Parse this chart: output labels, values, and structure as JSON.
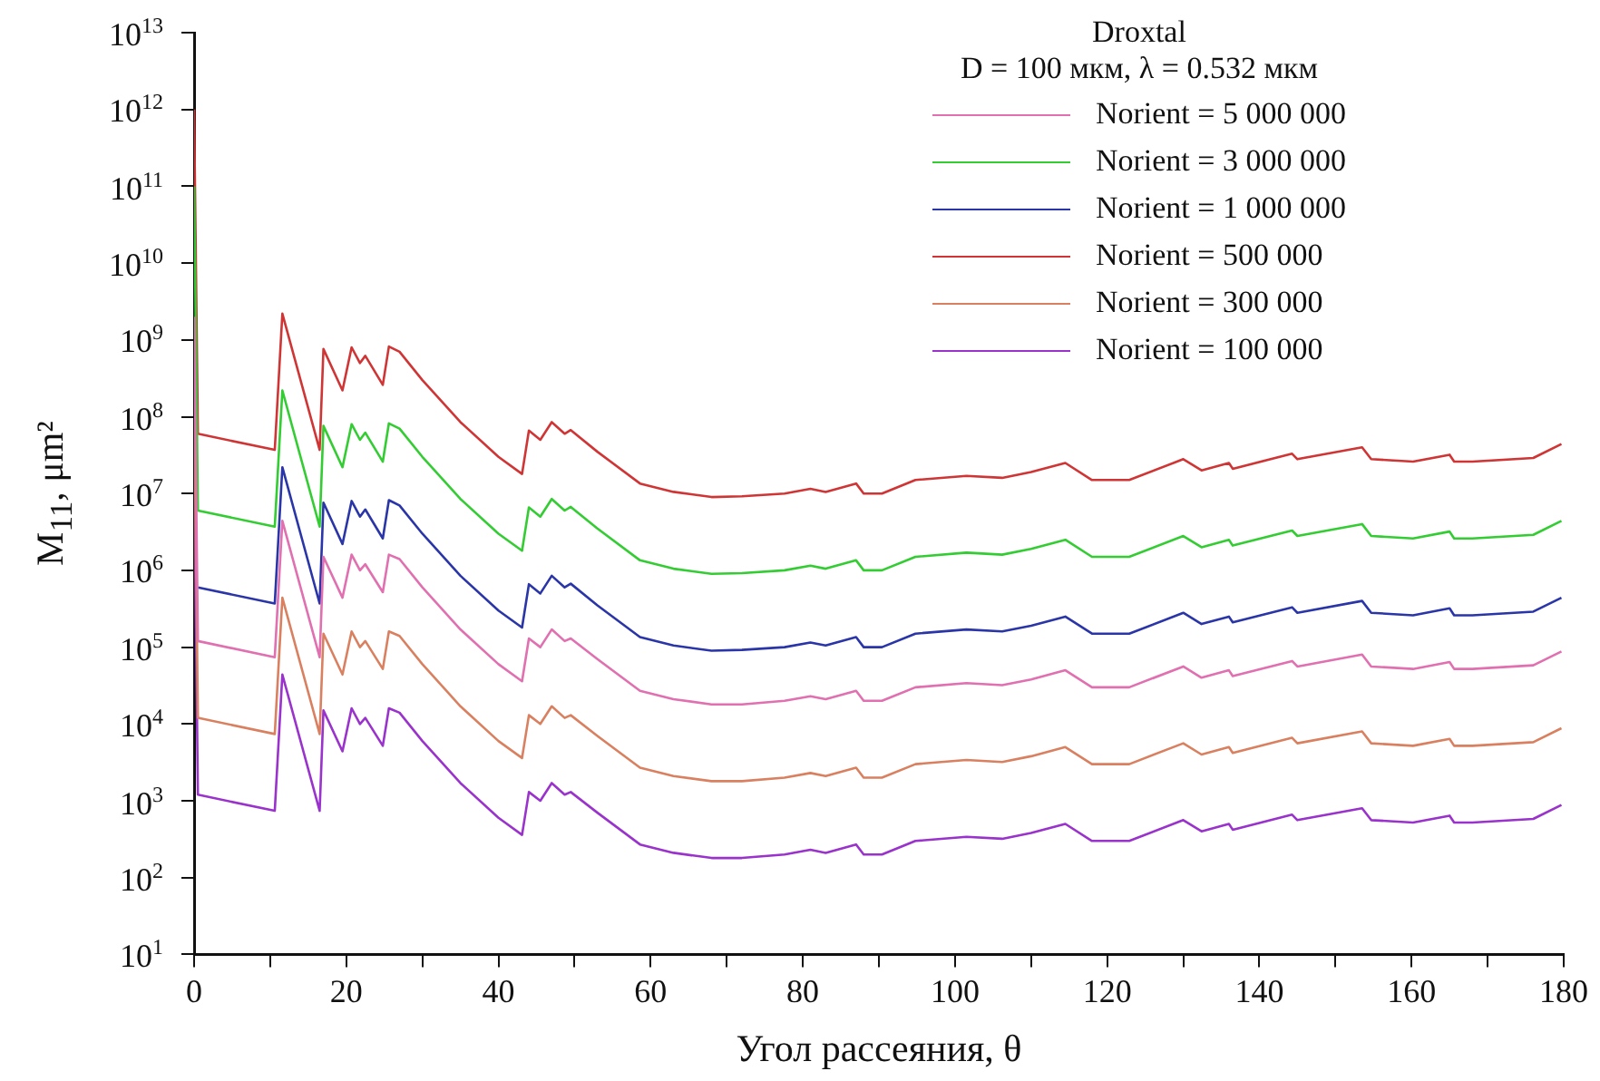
{
  "chart_data": {
    "type": "line",
    "xlabel": "Угол рассеяния, θ",
    "ylabel": "M$_{11}$, μm²",
    "legend_title": "Droxtal",
    "annotations": [
      "D = 100 мкм, λ = 0.532 мкм"
    ],
    "x": [
      0,
      0.5,
      10.6,
      11.6,
      16.5,
      17,
      19.5,
      20.7,
      21.8,
      22.5,
      24.8,
      25.6,
      27,
      30,
      35,
      40,
      43.1,
      44,
      45.5,
      47,
      48.7,
      49.5,
      53,
      58.6,
      63,
      68,
      72,
      77.6,
      81,
      83,
      87,
      88,
      90.4,
      94.8,
      101.5,
      106.2,
      110,
      114.5,
      118,
      122.9,
      130,
      132.4,
      136,
      136.5,
      144.3,
      145,
      153.5,
      154.7,
      160.2,
      165,
      165.6,
      168,
      176,
      179.7
    ],
    "series": [
      {
        "name": "Norient = 5 000 000",
        "color": "#e070b0",
        "values": [
          2000000000.0,
          120000.0,
          74000.0,
          4400000.0,
          74000.0,
          1500000.0,
          440000.0,
          1600000.0,
          1000000.0,
          1200000.0,
          520000.0,
          1600000.0,
          1400000.0,
          600000.0,
          170000.0,
          60000.0,
          36000.0,
          130000.0,
          100000.0,
          170000.0,
          120000.0,
          130000.0,
          70000.0,
          27000.0,
          21000.0,
          18000.0,
          18000.0,
          20000.0,
          23000.0,
          21000.0,
          27000.0,
          20000.0,
          20000.0,
          30000.0,
          34000.0,
          32000.0,
          38000.0,
          50000.0,
          30000.0,
          30000.0,
          56000.0,
          40000.0,
          50000.0,
          42000.0,
          66000.0,
          56000.0,
          80000.0,
          56000.0,
          52000.0,
          64000.0,
          52000.0,
          52000.0,
          58000.0,
          88000.0
        ]
      },
      {
        "name": "Norient = 3 000 000",
        "color": "#33cc33",
        "values": [
          100000000000.0,
          6000000.0,
          3700000.0,
          220000000.0,
          3700000.0,
          76000000.0,
          22000000.0,
          80000000.0,
          50000000.0,
          62000000.0,
          26000000.0,
          82000000.0,
          70000000.0,
          30000000.0,
          8500000.0,
          3000000.0,
          1800000.0,
          6600000.0,
          5000000.0,
          8500000.0,
          6000000.0,
          6700000.0,
          3500000.0,
          1350000.0,
          1050000.0,
          900000.0,
          920000.0,
          1000000.0,
          1150000.0,
          1050000.0,
          1350000.0,
          1000000.0,
          1000000.0,
          1500000.0,
          1700000.0,
          1600000.0,
          1900000.0,
          2500000.0,
          1500000.0,
          1500000.0,
          2800000.0,
          2000000.0,
          2500000.0,
          2100000.0,
          3300000.0,
          2800000.0,
          4000000.0,
          2800000.0,
          2600000.0,
          3200000.0,
          2600000.0,
          2600000.0,
          2900000.0,
          4400000.0
        ]
      },
      {
        "name": "Norient = 1 000 000",
        "color": "#2a35a8",
        "values": [
          null,
          600000.0,
          370000.0,
          22000000.0,
          370000.0,
          7600000.0,
          2200000.0,
          8000000.0,
          5000000.0,
          6200000.0,
          2600000.0,
          8200000.0,
          7000000.0,
          3000000.0,
          850000.0,
          300000.0,
          180000.0,
          660000.0,
          500000.0,
          850000.0,
          600000.0,
          670000.0,
          350000.0,
          135000.0,
          105000.0,
          90000.0,
          92000.0,
          100000.0,
          115000.0,
          105000.0,
          135000.0,
          100000.0,
          100000.0,
          150000.0,
          170000.0,
          160000.0,
          190000.0,
          250000.0,
          150000.0,
          150000.0,
          280000.0,
          200000.0,
          250000.0,
          210000.0,
          330000.0,
          280000.0,
          400000.0,
          280000.0,
          260000.0,
          320000.0,
          260000.0,
          260000.0,
          290000.0,
          440000.0
        ]
      },
      {
        "name": "Norient = 500 000",
        "color": "#d03535",
        "values": [
          1000000000000.0,
          60000000.0,
          37000000.0,
          2200000000.0,
          37000000.0,
          760000000.0,
          220000000.0,
          800000000.0,
          500000000.0,
          620000000.0,
          260000000.0,
          820000000.0,
          700000000.0,
          300000000.0,
          85000000.0,
          30000000.0,
          18000000.0,
          66000000.0,
          50000000.0,
          85000000.0,
          60000000.0,
          67000000.0,
          35000000.0,
          13500000.0,
          10500000.0,
          9000000.0,
          9200000.0,
          10000000.0,
          11500000.0,
          10500000.0,
          13500000.0,
          10000000.0,
          10000000.0,
          15000000.0,
          17000000.0,
          16000000.0,
          19000000.0,
          25000000.0,
          15000000.0,
          15000000.0,
          28000000.0,
          20000000.0,
          25000000.0,
          21000000.0,
          33000000.0,
          28000000.0,
          40000000.0,
          28000000.0,
          26000000.0,
          32000000.0,
          26000000.0,
          26000000.0,
          29000000.0,
          44000000.0
        ]
      },
      {
        "name": "Norient = 300 000",
        "color": "#d98060",
        "values": [
          200000000.0,
          12000.0,
          7400.0,
          440000.0,
          7400.0,
          150000.0,
          44000.0,
          160000.0,
          100000.0,
          120000.0,
          52000.0,
          160000.0,
          140000.0,
          60000.0,
          17000.0,
          6000.0,
          3600.0,
          13000.0,
          10000.0,
          17000.0,
          12000.0,
          13000.0,
          7000.0,
          2700.0,
          2100.0,
          1800.0,
          1800.0,
          2000.0,
          2300.0,
          2100.0,
          2700.0,
          2000.0,
          2000.0,
          3000.0,
          3400.0,
          3200.0,
          3800.0,
          5000.0,
          3000.0,
          3000.0,
          5600.0,
          4000.0,
          5000.0,
          4200.0,
          6600.0,
          5600.0,
          8000.0,
          5600.0,
          5200.0,
          6400.0,
          5200.0,
          5200.0,
          5800.0,
          8800.0
        ]
      },
      {
        "name": "Norient = 100 000",
        "color": "#9933cc",
        "values": [
          20000000.0,
          1200.0,
          740,
          44000.0,
          740,
          15000.0,
          4400.0,
          16000.0,
          10000.0,
          12000.0,
          5200.0,
          16000.0,
          14000.0,
          6000.0,
          1700.0,
          600,
          360,
          1300.0,
          1000.0,
          1700.0,
          1200.0,
          1300.0,
          700,
          270,
          210,
          180,
          180,
          200,
          230,
          210,
          270,
          200,
          200,
          300,
          340,
          320,
          380,
          500,
          300,
          300,
          560,
          400,
          500,
          420,
          660,
          560,
          800,
          560,
          520,
          640,
          520,
          520,
          580,
          880
        ]
      }
    ],
    "xlim": [
      0,
      180
    ],
    "xticks": [
      0,
      {
        "value": 10,
        "label": null
      },
      20,
      {
        "value": 30,
        "label": null
      },
      40,
      {
        "value": 50,
        "label": null
      },
      60,
      {
        "value": 70,
        "label": null
      },
      80,
      {
        "value": 90,
        "label": null
      },
      100,
      {
        "value": 110,
        "label": null
      },
      120,
      {
        "value": 130,
        "label": null
      },
      140,
      {
        "value": 150,
        "label": null
      },
      160,
      {
        "value": 170,
        "label": null
      },
      180
    ],
    "ylim": [
      10,
      10000000000000.0
    ],
    "yticks": [
      {
        "value": 10,
        "label": "10$^{1}$"
      },
      {
        "value": 100,
        "label": "10$^{2}$"
      },
      {
        "value": 1000,
        "label": "10$^{3}$"
      },
      {
        "value": 10000.0,
        "label": "10$^{4}$"
      },
      {
        "value": 100000.0,
        "label": "10$^{5}$"
      },
      {
        "value": 1000000.0,
        "label": "10$^{6}$"
      },
      {
        "value": 10000000.0,
        "label": "10$^{7}$"
      },
      {
        "value": 100000000.0,
        "label": "10$^{8}$"
      },
      {
        "value": 1000000000.0,
        "label": "10$^{9}$"
      },
      {
        "value": 10000000000.0,
        "label": "10$^{10}$"
      },
      {
        "value": 100000000000.0,
        "label": "10$^{11}$"
      },
      {
        "value": 1000000000000.0,
        "label": "10$^{12}$"
      },
      {
        "value": 10000000000000.0,
        "label": "10$^{13}$"
      }
    ],
    "log": "y",
    "grid": false,
    "legend": "top right",
    "marker": "none",
    "line_style": "solid"
  }
}
